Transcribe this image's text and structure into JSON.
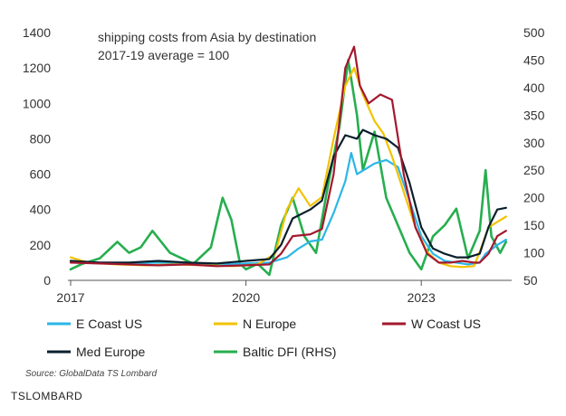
{
  "chart_data": {
    "type": "line",
    "annotation_lines": [
      "shipping costs from Asia by destination",
      "2017-19 average = 100"
    ],
    "x_tick_labels": [
      "2017",
      "2020",
      "2023"
    ],
    "x_ticks": [
      2017,
      2020,
      2023
    ],
    "xlim": [
      2017,
      2024.5
    ],
    "ylim_left": [
      0,
      1400
    ],
    "yticks_left": [
      "0",
      "200",
      "400",
      "600",
      "800",
      "1000",
      "1200",
      "1400"
    ],
    "ylim_right": [
      50,
      500
    ],
    "yticks_right": [
      "50",
      "100",
      "150",
      "200",
      "250",
      "300",
      "350",
      "400",
      "450",
      "500"
    ],
    "grid": false,
    "legend_position": "bottom",
    "series": [
      {
        "name": "E Coast US",
        "color": "#2bb6e8",
        "axis": "left",
        "points": [
          [
            2017.0,
            110
          ],
          [
            2017.5,
            100
          ],
          [
            2018.0,
            95
          ],
          [
            2018.5,
            100
          ],
          [
            2019.0,
            95
          ],
          [
            2019.5,
            90
          ],
          [
            2020.0,
            95
          ],
          [
            2020.4,
            100
          ],
          [
            2020.7,
            130
          ],
          [
            2020.9,
            180
          ],
          [
            2021.1,
            220
          ],
          [
            2021.3,
            230
          ],
          [
            2021.5,
            380
          ],
          [
            2021.7,
            560
          ],
          [
            2021.8,
            720
          ],
          [
            2021.9,
            600
          ],
          [
            2022.0,
            620
          ],
          [
            2022.2,
            660
          ],
          [
            2022.4,
            680
          ],
          [
            2022.6,
            640
          ],
          [
            2022.8,
            450
          ],
          [
            2023.0,
            250
          ],
          [
            2023.2,
            150
          ],
          [
            2023.4,
            110
          ],
          [
            2023.6,
            100
          ],
          [
            2023.8,
            90
          ],
          [
            2024.0,
            100
          ],
          [
            2024.1,
            150
          ],
          [
            2024.3,
            200
          ],
          [
            2024.45,
            230
          ]
        ]
      },
      {
        "name": "N Europe",
        "color": "#f2c200",
        "axis": "left",
        "points": [
          [
            2017.0,
            130
          ],
          [
            2017.3,
            100
          ],
          [
            2017.8,
            90
          ],
          [
            2018.3,
            85
          ],
          [
            2018.8,
            90
          ],
          [
            2019.3,
            85
          ],
          [
            2019.8,
            80
          ],
          [
            2020.2,
            90
          ],
          [
            2020.5,
            150
          ],
          [
            2020.7,
            400
          ],
          [
            2020.9,
            520
          ],
          [
            2021.1,
            420
          ],
          [
            2021.3,
            470
          ],
          [
            2021.5,
            800
          ],
          [
            2021.7,
            1100
          ],
          [
            2021.85,
            1200
          ],
          [
            2022.0,
            1050
          ],
          [
            2022.2,
            900
          ],
          [
            2022.35,
            830
          ],
          [
            2022.5,
            700
          ],
          [
            2022.7,
            500
          ],
          [
            2022.9,
            300
          ],
          [
            2023.1,
            160
          ],
          [
            2023.3,
            100
          ],
          [
            2023.5,
            80
          ],
          [
            2023.7,
            75
          ],
          [
            2023.9,
            80
          ],
          [
            2024.0,
            160
          ],
          [
            2024.15,
            300
          ],
          [
            2024.3,
            330
          ],
          [
            2024.45,
            360
          ]
        ]
      },
      {
        "name": "W Coast US",
        "color": "#a3182e",
        "axis": "left",
        "points": [
          [
            2017.0,
            100
          ],
          [
            2017.5,
            95
          ],
          [
            2018.0,
            90
          ],
          [
            2018.5,
            85
          ],
          [
            2019.0,
            90
          ],
          [
            2019.5,
            80
          ],
          [
            2020.0,
            85
          ],
          [
            2020.4,
            90
          ],
          [
            2020.6,
            150
          ],
          [
            2020.8,
            250
          ],
          [
            2021.1,
            260
          ],
          [
            2021.3,
            290
          ],
          [
            2021.5,
            600
          ],
          [
            2021.7,
            1200
          ],
          [
            2021.85,
            1320
          ],
          [
            2021.95,
            1100
          ],
          [
            2022.1,
            1000
          ],
          [
            2022.3,
            1050
          ],
          [
            2022.5,
            1020
          ],
          [
            2022.7,
            600
          ],
          [
            2022.9,
            300
          ],
          [
            2023.1,
            150
          ],
          [
            2023.3,
            100
          ],
          [
            2023.5,
            100
          ],
          [
            2023.7,
            110
          ],
          [
            2023.9,
            100
          ],
          [
            2024.0,
            100
          ],
          [
            2024.15,
            150
          ],
          [
            2024.3,
            250
          ],
          [
            2024.45,
            280
          ]
        ]
      },
      {
        "name": "Med Europe",
        "color": "#0a1f2c",
        "axis": "left",
        "points": [
          [
            2017.0,
            110
          ],
          [
            2017.5,
            100
          ],
          [
            2018.0,
            100
          ],
          [
            2018.5,
            110
          ],
          [
            2019.0,
            100
          ],
          [
            2019.5,
            95
          ],
          [
            2020.0,
            110
          ],
          [
            2020.4,
            120
          ],
          [
            2020.6,
            200
          ],
          [
            2020.8,
            350
          ],
          [
            2021.1,
            400
          ],
          [
            2021.3,
            450
          ],
          [
            2021.5,
            700
          ],
          [
            2021.7,
            820
          ],
          [
            2021.9,
            800
          ],
          [
            2022.0,
            850
          ],
          [
            2022.2,
            820
          ],
          [
            2022.4,
            800
          ],
          [
            2022.6,
            750
          ],
          [
            2022.8,
            550
          ],
          [
            2023.0,
            300
          ],
          [
            2023.2,
            180
          ],
          [
            2023.4,
            150
          ],
          [
            2023.6,
            130
          ],
          [
            2023.8,
            130
          ],
          [
            2024.0,
            150
          ],
          [
            2024.15,
            300
          ],
          [
            2024.3,
            400
          ],
          [
            2024.45,
            410
          ]
        ]
      },
      {
        "name": "Baltic DFI (RHS)",
        "color": "#27ae4f",
        "axis": "right",
        "points": [
          [
            2017.0,
            70
          ],
          [
            2017.2,
            80
          ],
          [
            2017.5,
            90
          ],
          [
            2017.8,
            120
          ],
          [
            2018.0,
            100
          ],
          [
            2018.2,
            110
          ],
          [
            2018.4,
            140
          ],
          [
            2018.7,
            100
          ],
          [
            2018.9,
            90
          ],
          [
            2019.1,
            80
          ],
          [
            2019.4,
            110
          ],
          [
            2019.6,
            200
          ],
          [
            2019.75,
            160
          ],
          [
            2019.9,
            80
          ],
          [
            2020.0,
            70
          ],
          [
            2020.2,
            80
          ],
          [
            2020.4,
            60
          ],
          [
            2020.6,
            150
          ],
          [
            2020.8,
            200
          ],
          [
            2021.0,
            130
          ],
          [
            2021.2,
            100
          ],
          [
            2021.4,
            220
          ],
          [
            2021.6,
            330
          ],
          [
            2021.75,
            450
          ],
          [
            2021.9,
            350
          ],
          [
            2022.0,
            250
          ],
          [
            2022.2,
            320
          ],
          [
            2022.4,
            200
          ],
          [
            2022.6,
            150
          ],
          [
            2022.8,
            100
          ],
          [
            2023.0,
            70
          ],
          [
            2023.2,
            130
          ],
          [
            2023.4,
            150
          ],
          [
            2023.6,
            180
          ],
          [
            2023.8,
            90
          ],
          [
            2024.0,
            140
          ],
          [
            2024.1,
            250
          ],
          [
            2024.2,
            130
          ],
          [
            2024.35,
            100
          ],
          [
            2024.45,
            120
          ]
        ]
      }
    ]
  },
  "source": "Source: GlobalData TS Lombard",
  "brand": "TSLOMBARD"
}
